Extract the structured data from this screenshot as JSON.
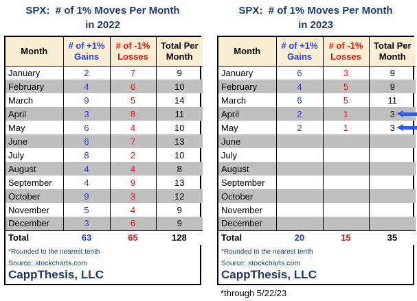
{
  "colors": {
    "navy": "#1F3864",
    "gains_blue": "#2438E8",
    "losses_red": "#F50D0D",
    "header_cream": "#FAEFD3",
    "band_gray": "#BFBFBF",
    "arrow_blue": "#2D5BEB"
  },
  "tables": [
    {
      "title_line1": "SPX:  # of 1% Moves Per Month",
      "title_line2": "in 2022",
      "columns": {
        "month": "Month",
        "gains_line1": "# of +1%",
        "gains_line2": "Gains",
        "losses_line1": "# of -1%",
        "losses_line2": "Losses",
        "total_line1": "Total Per",
        "total_line2": "Month"
      },
      "rows": [
        {
          "month": "January",
          "gains": "2",
          "losses": "7",
          "total": "9"
        },
        {
          "month": "February",
          "gains": "4",
          "losses": "6",
          "total": "10"
        },
        {
          "month": "March",
          "gains": "9",
          "losses": "5",
          "total": "14"
        },
        {
          "month": "April",
          "gains": "3",
          "losses": "8",
          "total": "11"
        },
        {
          "month": "May",
          "gains": "6",
          "losses": "4",
          "total": "10"
        },
        {
          "month": "June",
          "gains": "6",
          "losses": "7",
          "total": "13"
        },
        {
          "month": "July",
          "gains": "8",
          "losses": "2",
          "total": "10"
        },
        {
          "month": "August",
          "gains": "4",
          "losses": "4",
          "total": "8"
        },
        {
          "month": "September",
          "gains": "4",
          "losses": "9",
          "total": "13"
        },
        {
          "month": "October",
          "gains": "9",
          "losses": "3",
          "total": "12"
        },
        {
          "month": "November",
          "gains": "5",
          "losses": "4",
          "total": "9"
        },
        {
          "month": "December",
          "gains": "3",
          "losses": "6",
          "total": "9"
        }
      ],
      "total_row": {
        "label": "Total",
        "gains": "63",
        "losses": "65",
        "total": "128"
      },
      "footnote1": "*Rounded to the nearest tenth",
      "footnote2": "Source: stockcharts.com",
      "brand": "CappThesis, LLC"
    },
    {
      "title_line1": "SPX:  # of 1% Moves Per Month",
      "title_line2": "in 2023",
      "columns": {
        "month": "Month",
        "gains_line1": "# of +1%",
        "gains_line2": "Gains",
        "losses_line1": "# of -1%",
        "losses_line2": "Losses",
        "total_line1": "Total Per",
        "total_line2": "Month"
      },
      "rows": [
        {
          "month": "January",
          "gains": "6",
          "losses": "3",
          "total": "9"
        },
        {
          "month": "February",
          "gains": "4",
          "losses": "5",
          "total": "9"
        },
        {
          "month": "March",
          "gains": "6",
          "losses": "5",
          "total": "11"
        },
        {
          "month": "April",
          "gains": "2",
          "losses": "1",
          "total": "3"
        },
        {
          "month": "May",
          "gains": "2",
          "losses": "1",
          "total": "3"
        },
        {
          "month": "June",
          "gains": "",
          "losses": "",
          "total": ""
        },
        {
          "month": "July",
          "gains": "",
          "losses": "",
          "total": ""
        },
        {
          "month": "August",
          "gains": "",
          "losses": "",
          "total": ""
        },
        {
          "month": "September",
          "gains": "",
          "losses": "",
          "total": ""
        },
        {
          "month": "October",
          "gains": "",
          "losses": "",
          "total": ""
        },
        {
          "month": "November",
          "gains": "",
          "losses": "",
          "total": ""
        },
        {
          "month": "December",
          "gains": "",
          "losses": "",
          "total": ""
        }
      ],
      "total_row": {
        "label": "Total",
        "gains": "20",
        "losses": "15",
        "total": "35"
      },
      "footnote1": "*Rounded to the nearest tenth",
      "footnote2": "Source: stockcharts.com",
      "brand": "CappThesis, LLC",
      "below_note": "*through 5/22/23"
    }
  ],
  "chart_data": [
    {
      "type": "table",
      "title": "SPX: # of 1% Moves Per Month in 2022",
      "columns": [
        "Month",
        "# of +1% Gains",
        "# of -1% Losses",
        "Total Per Month"
      ],
      "rows": [
        [
          "January",
          2,
          7,
          9
        ],
        [
          "February",
          4,
          6,
          10
        ],
        [
          "March",
          9,
          5,
          14
        ],
        [
          "April",
          3,
          8,
          11
        ],
        [
          "May",
          6,
          4,
          10
        ],
        [
          "June",
          6,
          7,
          13
        ],
        [
          "July",
          8,
          2,
          10
        ],
        [
          "August",
          4,
          4,
          8
        ],
        [
          "September",
          4,
          9,
          13
        ],
        [
          "October",
          9,
          3,
          12
        ],
        [
          "November",
          5,
          4,
          9
        ],
        [
          "December",
          3,
          6,
          9
        ]
      ],
      "totals": [
        "Total",
        63,
        65,
        128
      ],
      "footnotes": [
        "*Rounded to the nearest tenth",
        "Source: stockcharts.com"
      ],
      "brand": "CappThesis, LLC"
    },
    {
      "type": "table",
      "title": "SPX: # of 1% Moves Per Month in 2023",
      "columns": [
        "Month",
        "# of +1% Gains",
        "# of -1% Losses",
        "Total Per Month"
      ],
      "rows": [
        [
          "January",
          6,
          3,
          9
        ],
        [
          "February",
          4,
          5,
          9
        ],
        [
          "March",
          6,
          5,
          11
        ],
        [
          "April",
          2,
          1,
          3
        ],
        [
          "May",
          2,
          1,
          3
        ],
        [
          "June",
          null,
          null,
          null
        ],
        [
          "July",
          null,
          null,
          null
        ],
        [
          "August",
          null,
          null,
          null
        ],
        [
          "September",
          null,
          null,
          null
        ],
        [
          "October",
          null,
          null,
          null
        ],
        [
          "November",
          null,
          null,
          null
        ],
        [
          "December",
          null,
          null,
          null
        ]
      ],
      "totals": [
        "Total",
        20,
        15,
        35
      ],
      "annotations": [
        "blue left-pointing arrow at April total",
        "blue left-pointing arrow at May total"
      ],
      "footnotes": [
        "*Rounded to the nearest tenth",
        "Source: stockcharts.com",
        "*through 5/22/23"
      ],
      "brand": "CappThesis, LLC"
    }
  ]
}
